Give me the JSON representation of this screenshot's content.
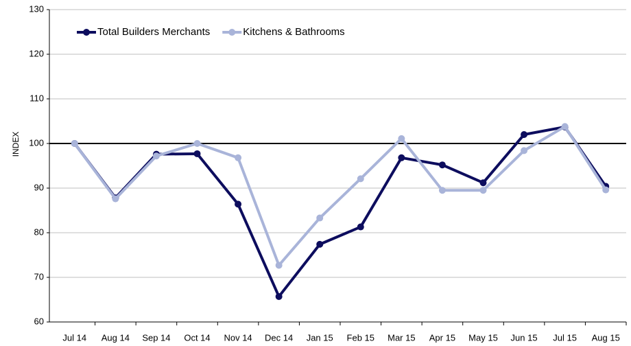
{
  "chart_data": {
    "type": "line",
    "y_label": "INDEX",
    "categories": [
      "Jul 14",
      "Aug 14",
      "Sep 14",
      "Oct 14",
      "Nov 14",
      "Dec 14",
      "Jan 15",
      "Feb 15",
      "Mar 15",
      "Apr 15",
      "May 15",
      "Jun 15",
      "Jul 15",
      "Aug 15"
    ],
    "series": [
      {
        "name": "Total Builders Merchants",
        "color": "#0d0d5e",
        "values": [
          100,
          87.8,
          97.6,
          97.7,
          86.4,
          65.7,
          77.4,
          81.3,
          96.8,
          95.2,
          91.2,
          102.0,
          103.7,
          90.4
        ]
      },
      {
        "name": "Kitchens & Bathrooms",
        "color": "#a9b4d9",
        "values": [
          100,
          87.6,
          97.2,
          100,
          96.8,
          72.7,
          83.3,
          92.1,
          101.1,
          89.5,
          89.5,
          98.4,
          103.8,
          89.6
        ]
      }
    ],
    "ylim": [
      60,
      130
    ],
    "yticks": [
      60,
      70,
      80,
      90,
      100,
      110,
      120,
      130
    ],
    "grid": true,
    "reference_line": 100,
    "legend": "top-left"
  }
}
